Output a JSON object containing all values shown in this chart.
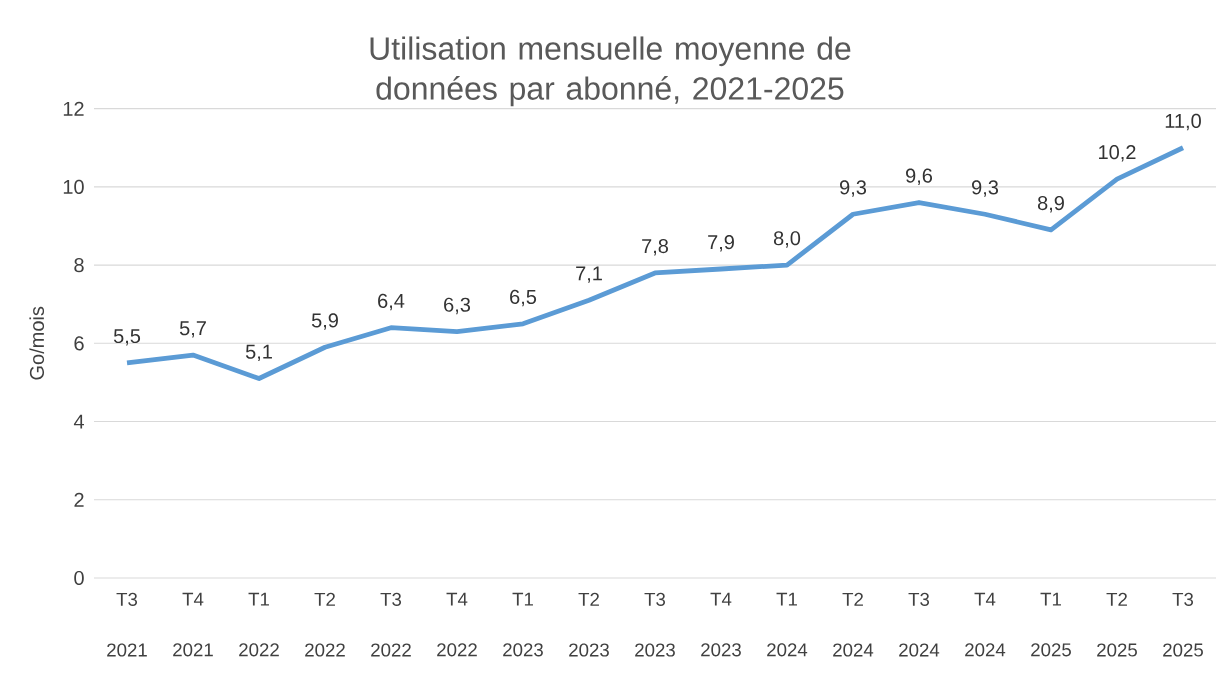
{
  "chart_data": {
    "type": "line",
    "title": "Utilisation mensuelle moyenne de données par abonné, 2021-2025",
    "ylabel": "Go/mois",
    "categories": [
      "T3 2021",
      "T4 2021",
      "T1 2022",
      "T2 2022",
      "T3 2022",
      "T4 2022",
      "T1 2023",
      "T2 2023",
      "T3 2023",
      "T4 2023",
      "T1 2024",
      "T2 2024",
      "T3 2024",
      "T4 2024",
      "T1 2025",
      "T2 2025",
      "T3 2025"
    ],
    "series": [
      {
        "color": "#5b9bd5",
        "values": [
          5.5,
          5.7,
          5.1,
          5.9,
          6.4,
          6.3,
          6.5,
          7.1,
          7.8,
          7.9,
          8.0,
          9.3,
          9.6,
          9.3,
          8.9,
          10.2,
          11.0
        ],
        "value_labels": [
          "5,5",
          "5,7",
          "5,1",
          "5,9",
          "6,4",
          "6,3",
          "6,5",
          "7,1",
          "7,8",
          "7,9",
          "8,0",
          "9,3",
          "9,6",
          "9,3",
          "8,9",
          "10,2",
          "11,0"
        ]
      }
    ],
    "ylim": [
      0,
      12
    ],
    "yticks": [
      0,
      2,
      4,
      6,
      8,
      10,
      12
    ],
    "grid": "y",
    "marker": "none",
    "line_style": "solid"
  }
}
